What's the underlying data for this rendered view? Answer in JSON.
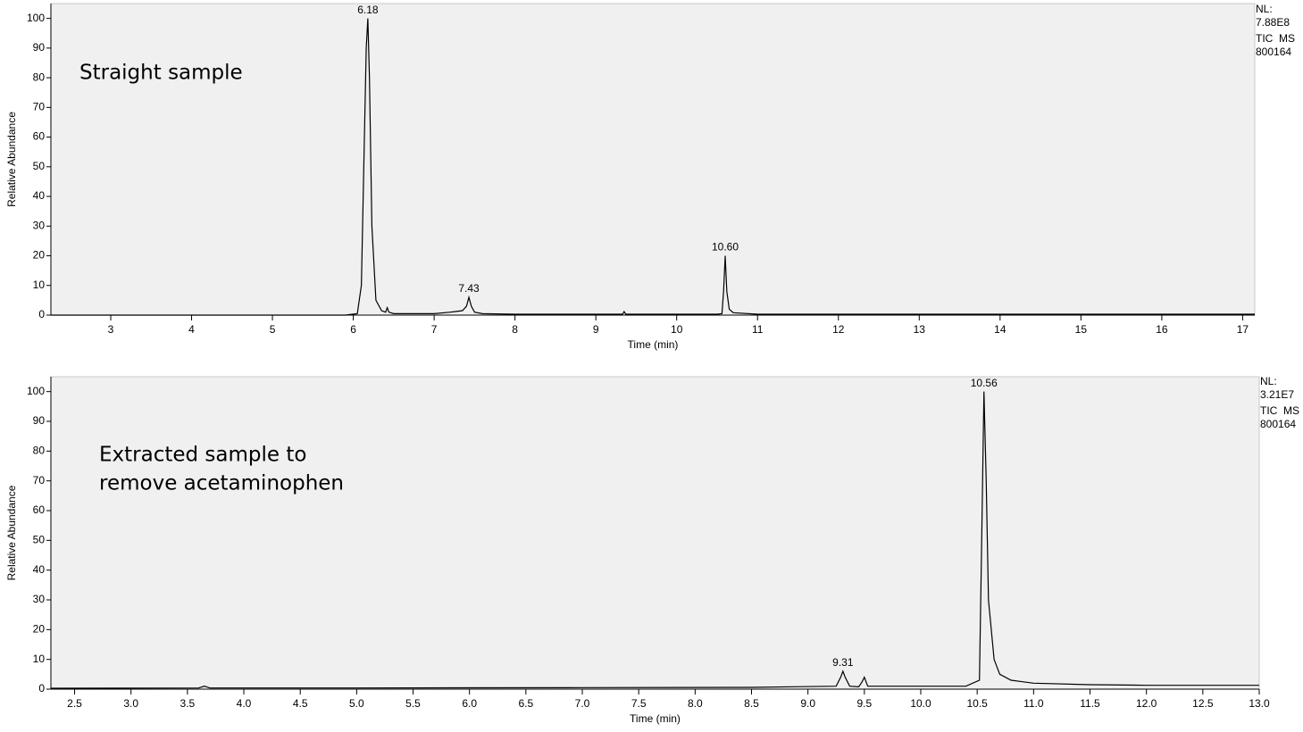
{
  "chart_data": [
    {
      "type": "line",
      "xlabel": "Time (min)",
      "ylabel": "Relative Abundance",
      "sample_label": [
        "Straight sample"
      ],
      "nl_text": [
        "NL:",
        "7.88E8",
        "TIC  MS",
        "800164"
      ],
      "color": "#000000",
      "x": [
        2.26,
        5.9,
        6.05,
        6.1,
        6.13,
        6.16,
        6.18,
        6.2,
        6.23,
        6.28,
        6.35,
        6.4,
        6.42,
        6.44,
        6.5,
        7.0,
        7.2,
        7.35,
        7.4,
        7.43,
        7.46,
        7.5,
        7.6,
        8.0,
        9.0,
        9.33,
        9.35,
        9.37,
        9.5,
        10.5,
        10.56,
        10.58,
        10.6,
        10.62,
        10.65,
        10.7,
        11.0,
        17.15
      ],
      "values": [
        0,
        0,
        0.5,
        10,
        50,
        90,
        100,
        80,
        30,
        5,
        1.5,
        1,
        2.5,
        1,
        0.5,
        0.5,
        1,
        1.5,
        3,
        6,
        3,
        1,
        0.5,
        0.3,
        0.3,
        0.3,
        1.2,
        0.3,
        0.3,
        0.3,
        0.5,
        8,
        20,
        8,
        2,
        0.8,
        0.3,
        0.3
      ],
      "peak_labels": [
        {
          "x": 6.18,
          "y": 100,
          "label": "6.18"
        },
        {
          "x": 7.43,
          "y": 6,
          "label": "7.43"
        },
        {
          "x": 10.6,
          "y": 20,
          "label": "10.60"
        }
      ],
      "xlim": [
        2.26,
        17.15
      ],
      "ylim": [
        0,
        105
      ],
      "xticks": [
        3,
        4,
        5,
        6,
        7,
        8,
        9,
        10,
        11,
        12,
        13,
        14,
        15,
        16,
        17
      ],
      "yticks": [
        0,
        10,
        20,
        30,
        40,
        50,
        60,
        70,
        80,
        90,
        100
      ]
    },
    {
      "type": "line",
      "xlabel": "Time (min)",
      "ylabel": "Relative Abundance",
      "sample_label": [
        "Extracted sample to",
        "remove acetaminophen"
      ],
      "nl_text": [
        "NL:",
        "3.21E7",
        "TIC  MS",
        "800164"
      ],
      "color": "#000000",
      "x": [
        2.29,
        3.6,
        3.65,
        3.7,
        5,
        7,
        8.5,
        9.25,
        9.29,
        9.31,
        9.33,
        9.37,
        9.45,
        9.48,
        9.5,
        9.53,
        10.4,
        10.52,
        10.54,
        10.56,
        10.58,
        10.6,
        10.65,
        10.7,
        10.8,
        11.0,
        11.5,
        12,
        13
      ],
      "values": [
        0.3,
        0.4,
        1,
        0.4,
        0.4,
        0.5,
        0.6,
        1,
        4,
        6,
        4,
        1,
        0.8,
        2.5,
        4,
        1,
        1,
        3,
        50,
        100,
        70,
        30,
        10,
        5,
        3,
        2,
        1.5,
        1.3,
        1.3
      ],
      "peak_labels": [
        {
          "x": 9.31,
          "y": 6,
          "label": "9.31"
        },
        {
          "x": 10.56,
          "y": 100,
          "label": "10.56"
        }
      ],
      "xlim": [
        2.29,
        13.0
      ],
      "ylim": [
        0,
        105
      ],
      "xticks": [
        {
          "value": 2.5,
          "label": "2.5"
        },
        {
          "value": 3,
          "label": "3.0"
        },
        {
          "value": 3.5,
          "label": "3.5"
        },
        {
          "value": 4,
          "label": "4.0"
        },
        {
          "value": 4.5,
          "label": "4.5"
        },
        {
          "value": 5,
          "label": "5.0"
        },
        {
          "value": 5.5,
          "label": "5.5"
        },
        {
          "value": 6,
          "label": "6.0"
        },
        {
          "value": 6.5,
          "label": "6.5"
        },
        {
          "value": 7,
          "label": "7.0"
        },
        {
          "value": 7.5,
          "label": "7.5"
        },
        {
          "value": 8,
          "label": "8.0"
        },
        {
          "value": 8.5,
          "label": "8.5"
        },
        {
          "value": 9,
          "label": "9.0"
        },
        {
          "value": 9.5,
          "label": "9.5"
        },
        {
          "value": 10,
          "label": "10.0"
        },
        {
          "value": 10.5,
          "label": "10.5"
        },
        {
          "value": 11,
          "label": "11.0"
        },
        {
          "value": 11.5,
          "label": "11.5"
        },
        {
          "value": 12,
          "label": "12.0"
        },
        {
          "value": 12.5,
          "label": "12.5"
        },
        {
          "value": 13,
          "label": "13.0"
        }
      ],
      "yticks": [
        0,
        10,
        20,
        30,
        40,
        50,
        60,
        70,
        80,
        90,
        100
      ]
    }
  ]
}
